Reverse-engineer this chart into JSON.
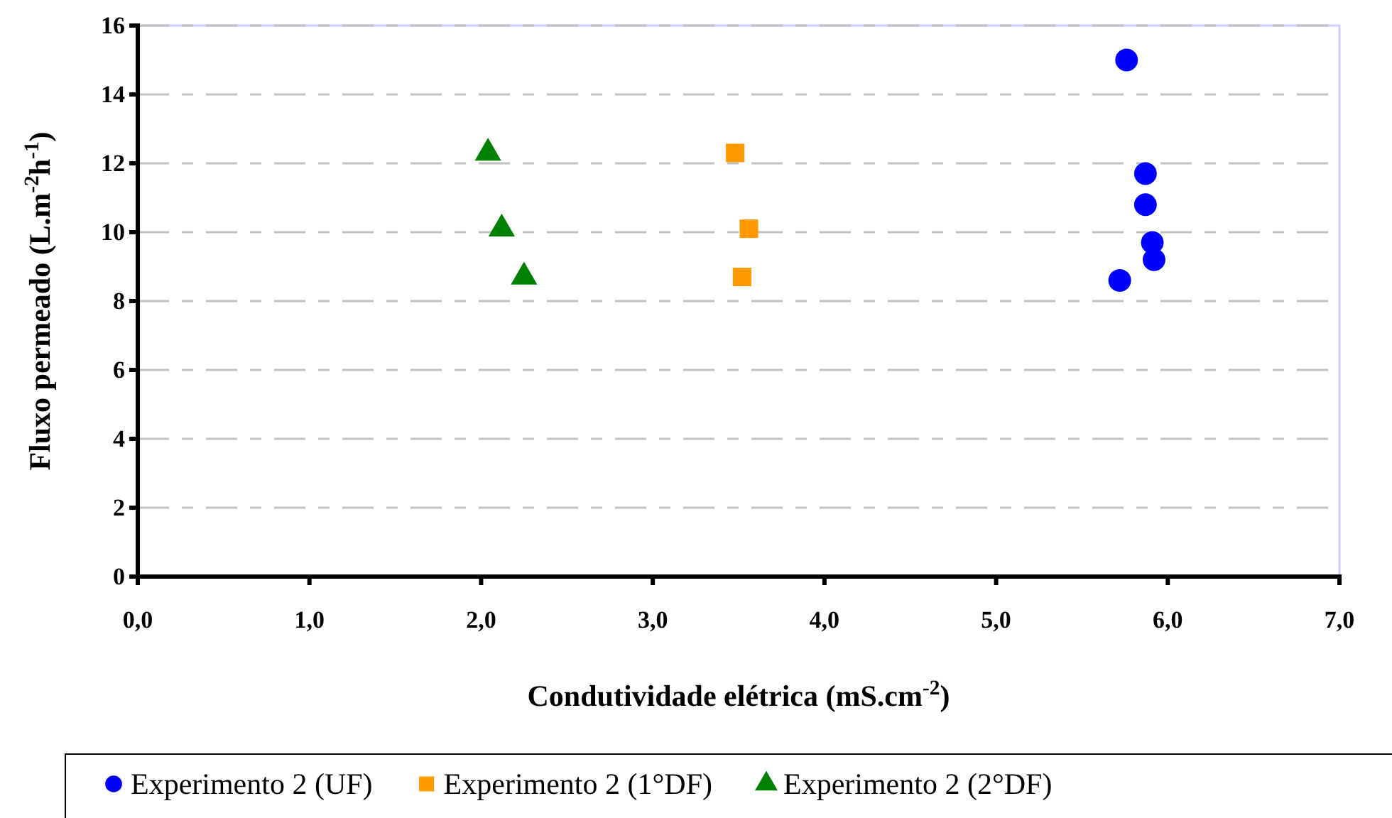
{
  "chart_data": {
    "type": "scatter",
    "xlabel": "Condutividade elétrica (mS.cm$^{-2}$)",
    "ylabel": "Fluxo permeado (L.m$^{-2}$h$^{-1}$)",
    "xlim": [
      0,
      7
    ],
    "ylim": [
      0,
      16
    ],
    "xticks": [
      {
        "value": 0,
        "label": "0,0"
      },
      {
        "value": 1,
        "label": "1,0"
      },
      {
        "value": 2,
        "label": "2,0"
      },
      {
        "value": 3,
        "label": "3,0"
      },
      {
        "value": 4,
        "label": "4,0"
      },
      {
        "value": 5,
        "label": "5,0"
      },
      {
        "value": 6,
        "label": "6,0"
      },
      {
        "value": 7,
        "label": "7,0"
      }
    ],
    "yticks": [
      0,
      2,
      4,
      6,
      8,
      10,
      12,
      14,
      16
    ],
    "grid": "y",
    "legend": "bottom",
    "series": [
      {
        "name": "Experimento 2 (UF)",
        "color": "#0000ff",
        "marker": "circle",
        "x": [
          5.76,
          5.87,
          5.87,
          5.91,
          5.92,
          5.72
        ],
        "values": [
          15.0,
          11.7,
          10.8,
          9.7,
          9.2,
          8.6
        ]
      },
      {
        "name": "Experimento 2 (1°DF)",
        "color": "#ff9900",
        "marker": "square",
        "x": [
          3.48,
          3.56,
          3.52
        ],
        "values": [
          12.3,
          10.1,
          8.7
        ]
      },
      {
        "name": "Experimento 2 (2°DF)",
        "color": "#008000",
        "marker": "triangle",
        "x": [
          2.04,
          2.12,
          2.25
        ],
        "values": [
          12.3,
          10.1,
          8.7
        ]
      }
    ]
  }
}
